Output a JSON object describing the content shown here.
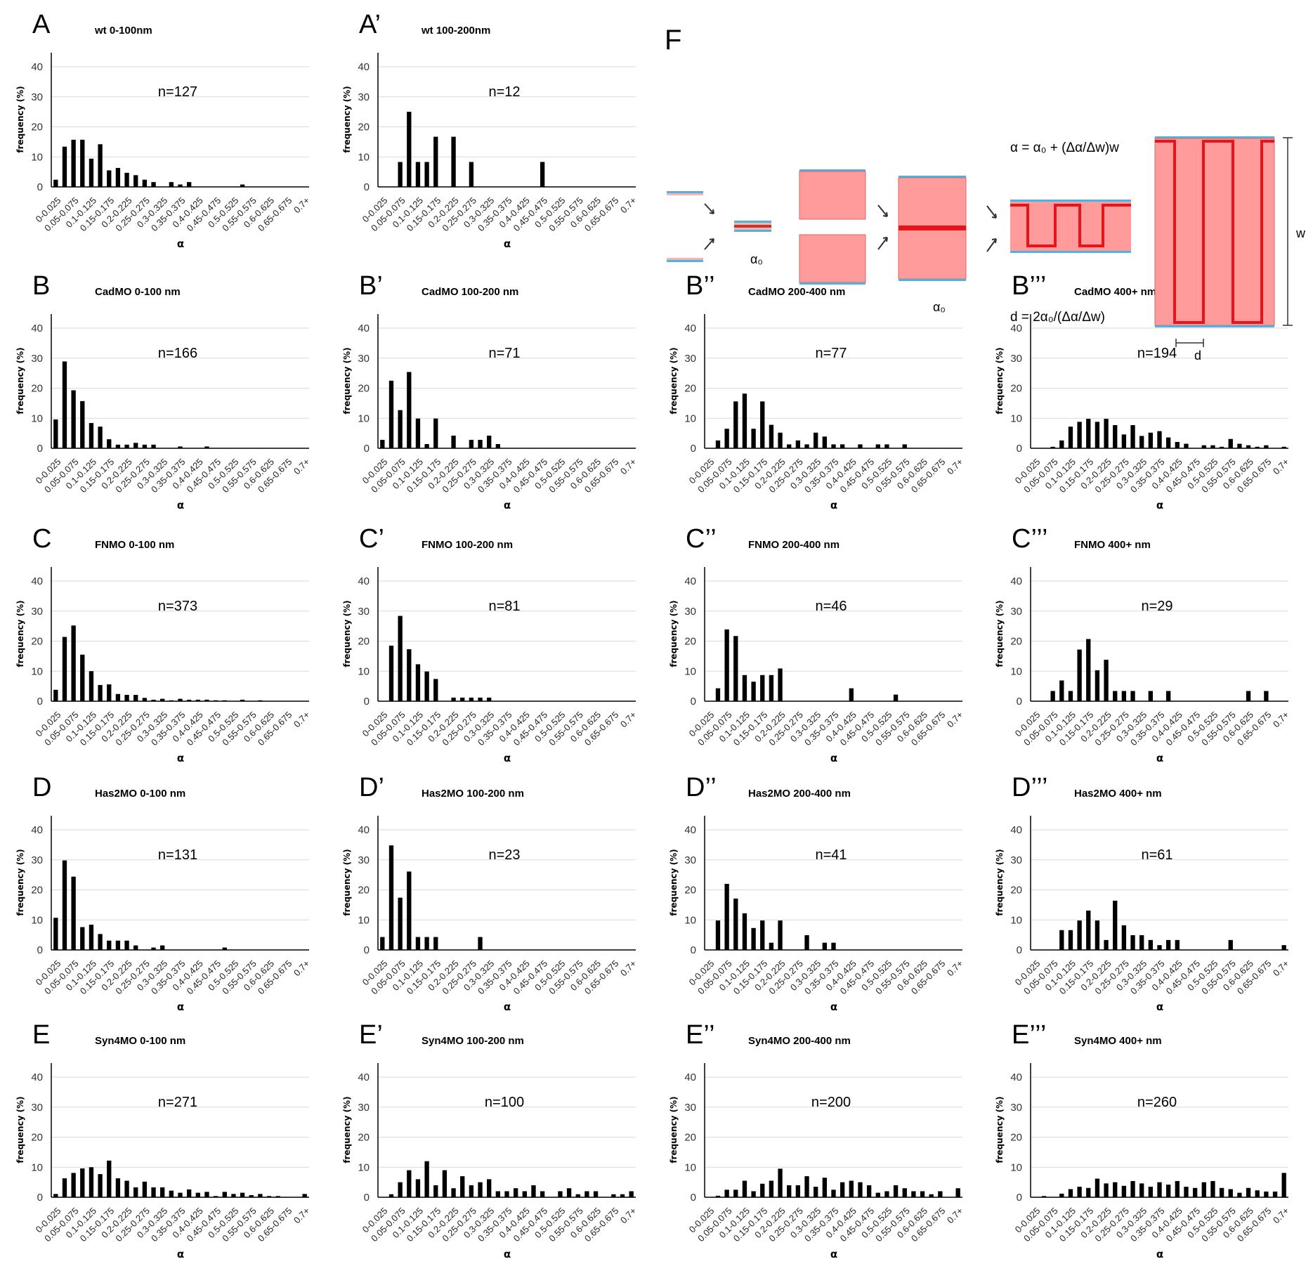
{
  "shared": {
    "y_label": "frequency (%)",
    "x_label": "α",
    "y_ticks": [
      0,
      10,
      20,
      30,
      40
    ],
    "ylim": [
      0,
      45
    ],
    "bar_color": "#000000",
    "grid_color": "#d9d9d9",
    "categories": [
      "0-0.025",
      "0.025-0.05",
      "0.05-0.075",
      "0.075-0.1",
      "0.1-0.125",
      "0.125-0.15",
      "0.15-0.175",
      "0.175-0.2",
      "0.2-0.225",
      "0.225-0.25",
      "0.25-0.275",
      "0.275-0.3",
      "0.3-0.325",
      "0.325-0.35",
      "0.35-0.375",
      "0.375-0.4",
      "0.4-0.425",
      "0.425-0.45",
      "0.45-0.475",
      "0.475-0.5",
      "0.5-0.525",
      "0.525-0.55",
      "0.55-0.575",
      "0.575-0.6",
      "0.6-0.625",
      "0.625-0.65",
      "0.65-0.675",
      "0.675-0.7",
      "0.7+"
    ]
  },
  "chart_data": [
    {
      "type": "bar",
      "panel": "A",
      "title": "wt 0-100nm",
      "n_label": "n=127",
      "values": [
        2.4,
        13.4,
        15.7,
        15.7,
        9.4,
        14.2,
        5.5,
        6.3,
        4.7,
        3.9,
        2.4,
        1.6,
        0,
        1.6,
        0.8,
        1.6,
        0,
        0,
        0,
        0,
        0,
        0.8,
        0,
        0,
        0,
        0,
        0,
        0,
        0
      ]
    },
    {
      "type": "bar",
      "panel": "A’",
      "title": "wt 100-200nm",
      "n_label": "n=12",
      "values": [
        0,
        0,
        8.3,
        25,
        8.3,
        8.3,
        16.7,
        0,
        16.7,
        0,
        8.3,
        0,
        0,
        0,
        0,
        0,
        0,
        0,
        8.3,
        0,
        0,
        0,
        0,
        0,
        0,
        0,
        0,
        0,
        0
      ]
    },
    {
      "type": "bar",
      "panel": "B",
      "title": "CadMO  0-100 nm",
      "n_label": "n=166",
      "values": [
        9.6,
        28.9,
        19.3,
        15.7,
        8.4,
        7.2,
        3.0,
        1.2,
        1.2,
        1.8,
        1.2,
        1.2,
        0,
        0,
        0.6,
        0,
        0,
        0.6,
        0,
        0,
        0,
        0,
        0,
        0,
        0,
        0,
        0,
        0,
        0
      ]
    },
    {
      "type": "bar",
      "panel": "B’",
      "title": "CadMO 100-200 nm",
      "n_label": "n=71",
      "values": [
        2.8,
        22.5,
        12.7,
        25.4,
        9.9,
        1.4,
        9.9,
        0,
        4.2,
        0,
        2.8,
        2.8,
        4.2,
        1.4,
        0,
        0,
        0,
        0,
        0,
        0,
        0,
        0,
        0,
        0,
        0,
        0,
        0,
        0,
        0
      ]
    },
    {
      "type": "bar",
      "panel": "B’’",
      "title": "CadMO 200-400 nm",
      "n_label": "n=77",
      "values": [
        0,
        2.6,
        6.5,
        15.6,
        18.2,
        6.5,
        15.6,
        7.8,
        5.2,
        1.3,
        2.6,
        1.3,
        5.2,
        3.9,
        1.3,
        1.3,
        0,
        1.3,
        0,
        1.3,
        1.3,
        0,
        1.3,
        0,
        0,
        0,
        0,
        0,
        0
      ]
    },
    {
      "type": "bar",
      "panel": "B’’’",
      "title": "CadMO 400+ nm",
      "n_label": "n=194",
      "values": [
        0,
        0,
        0.5,
        2.6,
        7.2,
        8.8,
        9.8,
        8.8,
        9.8,
        7.7,
        4.6,
        7.7,
        4.1,
        5.2,
        5.7,
        3.6,
        2.1,
        1.5,
        0,
        1.0,
        1.0,
        0.5,
        3.1,
        1.5,
        1.0,
        0.5,
        1.0,
        0,
        0.5
      ]
    },
    {
      "type": "bar",
      "panel": "C",
      "title": "FNMO 0-100 nm",
      "n_label": "n=373",
      "values": [
        3.8,
        21.4,
        25.2,
        15.5,
        10.0,
        5.4,
        5.6,
        2.4,
        2.1,
        2.1,
        1.1,
        0.5,
        0.8,
        0.3,
        0.8,
        0.5,
        0.5,
        0.5,
        0.3,
        0.3,
        0,
        0.5,
        0,
        0.3,
        0,
        0,
        0,
        0,
        0
      ]
    },
    {
      "type": "bar",
      "panel": "C’",
      "title": "FNMO 100-200 nm",
      "n_label": "n=81",
      "values": [
        0,
        18.5,
        28.4,
        17.3,
        12.3,
        9.9,
        7.4,
        0,
        1.2,
        1.2,
        1.2,
        1.2,
        1.2,
        0,
        0,
        0,
        0,
        0,
        0,
        0,
        0,
        0,
        0,
        0,
        0,
        0,
        0,
        0,
        0
      ]
    },
    {
      "type": "bar",
      "panel": "C’’",
      "title": "FNMO 200-400 nm",
      "n_label": "n=46",
      "values": [
        0,
        4.3,
        23.9,
        21.7,
        8.7,
        6.5,
        8.7,
        8.7,
        10.9,
        0,
        0,
        0,
        0,
        0,
        0,
        0,
        4.3,
        0,
        0,
        0,
        0,
        2.2,
        0,
        0,
        0,
        0,
        0,
        0,
        0
      ]
    },
    {
      "type": "bar",
      "panel": "C’’’",
      "title": "FNMO 400+ nm",
      "n_label": "n=29",
      "values": [
        0,
        0,
        3.4,
        6.9,
        3.4,
        17.2,
        20.7,
        10.3,
        13.8,
        3.4,
        3.4,
        3.4,
        0,
        3.4,
        0,
        3.4,
        0,
        0,
        0,
        0,
        0,
        0,
        0,
        0,
        3.4,
        0,
        3.4,
        0,
        0
      ]
    },
    {
      "type": "bar",
      "panel": "D",
      "title": "Has2MO 0-100 nm",
      "n_label": "n=131",
      "values": [
        10.7,
        29.8,
        24.4,
        7.6,
        8.4,
        5.3,
        3.1,
        3.1,
        3.1,
        1.5,
        0,
        0.8,
        1.5,
        0,
        0,
        0,
        0,
        0,
        0,
        0.8,
        0,
        0,
        0,
        0,
        0,
        0,
        0,
        0,
        0
      ]
    },
    {
      "type": "bar",
      "panel": "D’",
      "title": "Has2MO 100-200 nm",
      "n_label": "n=23",
      "values": [
        4.3,
        34.8,
        17.4,
        26.1,
        4.3,
        4.3,
        4.3,
        0,
        0,
        0,
        0,
        4.3,
        0,
        0,
        0,
        0,
        0,
        0,
        0,
        0,
        0,
        0,
        0,
        0,
        0,
        0,
        0,
        0,
        0
      ]
    },
    {
      "type": "bar",
      "panel": "D’’",
      "title": "Has2MO 200-400 nm",
      "n_label": "n=41",
      "values": [
        0,
        9.8,
        22.0,
        17.1,
        12.2,
        7.3,
        9.8,
        2.4,
        9.8,
        0,
        0,
        4.9,
        0,
        2.4,
        2.4,
        0,
        0,
        0,
        0,
        0,
        0,
        0,
        0,
        0,
        0,
        0,
        0,
        0,
        0
      ]
    },
    {
      "type": "bar",
      "panel": "D’’’",
      "title": "Has2MO 400+ nm",
      "n_label": "n=61",
      "values": [
        0,
        0,
        0,
        6.6,
        6.6,
        9.8,
        13.1,
        9.8,
        3.3,
        16.4,
        8.2,
        4.9,
        4.9,
        3.3,
        1.6,
        3.3,
        3.3,
        0,
        0,
        0,
        0,
        0,
        3.3,
        0,
        0,
        0,
        0,
        0,
        1.6
      ]
    },
    {
      "type": "bar",
      "panel": "E",
      "title": "Syn4MO 0-100 nm",
      "n_label": "n=271",
      "values": [
        1.1,
        6.3,
        8.1,
        9.6,
        10.0,
        7.7,
        12.2,
        6.3,
        5.5,
        3.3,
        5.2,
        3.3,
        3.3,
        2.2,
        1.5,
        2.6,
        1.5,
        1.8,
        0.4,
        1.8,
        1.1,
        1.5,
        0.7,
        1.1,
        0.4,
        0.4,
        0,
        0,
        1.1
      ]
    },
    {
      "type": "bar",
      "panel": "E’",
      "title": "Syn4MO 100-200 nm",
      "n_label": "n=100",
      "values": [
        0,
        1,
        5,
        9,
        6,
        12,
        4,
        9,
        3,
        7,
        4,
        5,
        6,
        2,
        2,
        3,
        2,
        4,
        2,
        0,
        2,
        3,
        1,
        2,
        2,
        0,
        1,
        1,
        2
      ]
    },
    {
      "type": "bar",
      "panel": "E’’",
      "title": "Syn4MO 200-400 nm",
      "n_label": "n=200",
      "values": [
        0,
        0.5,
        2.5,
        2.5,
        5.5,
        2,
        4.5,
        5.5,
        9.5,
        4,
        4,
        7,
        3.5,
        6.5,
        2.5,
        5,
        5.5,
        5,
        4,
        1.5,
        2,
        4,
        3,
        2,
        2,
        1,
        2,
        0,
        3
      ]
    },
    {
      "type": "bar",
      "panel": "E’’’",
      "title": "Syn4MO 400+ nm",
      "n_label": "n=260",
      "values": [
        0,
        0.4,
        0,
        1.2,
        2.7,
        3.5,
        3.1,
        6.2,
        4.6,
        5.0,
        3.8,
        5.4,
        4.6,
        3.5,
        5.0,
        4.2,
        5.4,
        3.5,
        3.1,
        5.0,
        5.4,
        3.1,
        2.7,
        1.5,
        3.1,
        2.3,
        1.9,
        1.9,
        8.1
      ]
    }
  ],
  "diagram": {
    "panel": "F",
    "alpha0_label": "α₀",
    "equation_alpha": "α = α₀ + (Δα/Δw)w",
    "equation_d": "d = 2α₀/(Δα/Δw)",
    "w_label": "w",
    "d_label": "d",
    "colors": {
      "membrane": "#4fb3e0",
      "cell": "#ff9b9b",
      "adhesion": "#e8141b"
    }
  }
}
